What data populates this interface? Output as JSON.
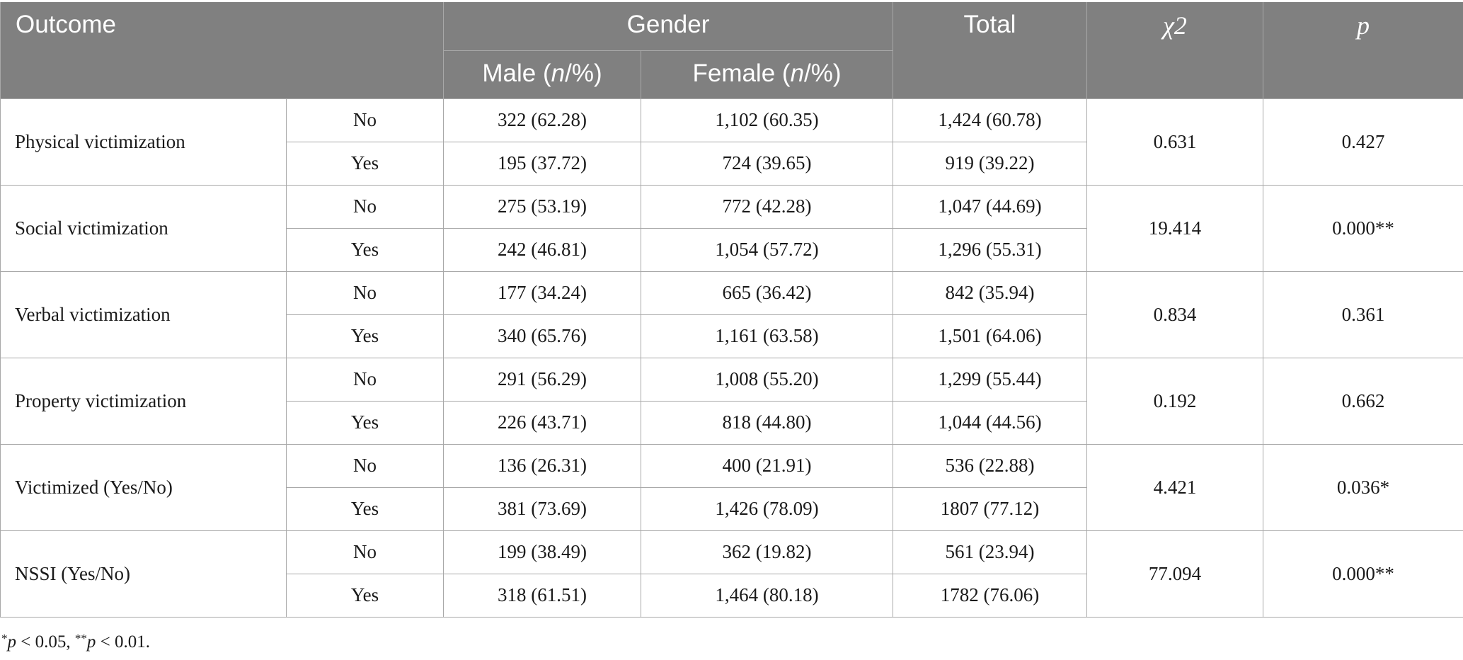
{
  "header": {
    "outcome": "Outcome",
    "gender": "Gender",
    "total": "Total",
    "chi": "χ2",
    "p": "p",
    "male_prefix": "Male (",
    "female_prefix": "Female (",
    "n": "n",
    "pct_suffix": "/%)"
  },
  "rows": [
    {
      "outcome": "Physical victimization",
      "chi": "0.631",
      "p": "0.427",
      "no": {
        "label": "No",
        "male": "322 (62.28)",
        "female": "1,102 (60.35)",
        "total": "1,424 (60.78)"
      },
      "yes": {
        "label": "Yes",
        "male": "195 (37.72)",
        "female": "724 (39.65)",
        "total": "919 (39.22)"
      }
    },
    {
      "outcome": "Social victimization",
      "chi": "19.414",
      "p": "0.000**",
      "no": {
        "label": "No",
        "male": "275 (53.19)",
        "female": "772 (42.28)",
        "total": "1,047 (44.69)"
      },
      "yes": {
        "label": "Yes",
        "male": "242 (46.81)",
        "female": "1,054 (57.72)",
        "total": "1,296 (55.31)"
      }
    },
    {
      "outcome": "Verbal victimization",
      "chi": "0.834",
      "p": "0.361",
      "no": {
        "label": "No",
        "male": "177 (34.24)",
        "female": "665 (36.42)",
        "total": "842 (35.94)"
      },
      "yes": {
        "label": "Yes",
        "male": "340 (65.76)",
        "female": "1,161 (63.58)",
        "total": "1,501 (64.06)"
      }
    },
    {
      "outcome": "Property victimization",
      "chi": "0.192",
      "p": "0.662",
      "no": {
        "label": "No",
        "male": "291 (56.29)",
        "female": "1,008 (55.20)",
        "total": "1,299 (55.44)"
      },
      "yes": {
        "label": "Yes",
        "male": "226 (43.71)",
        "female": "818 (44.80)",
        "total": "1,044 (44.56)"
      }
    },
    {
      "outcome": "Victimized (Yes/No)",
      "chi": "4.421",
      "p": "0.036*",
      "no": {
        "label": "No",
        "male": "136 (26.31)",
        "female": "400 (21.91)",
        "total": "536 (22.88)"
      },
      "yes": {
        "label": "Yes",
        "male": "381 (73.69)",
        "female": "1,426 (78.09)",
        "total": "1807 (77.12)"
      }
    },
    {
      "outcome": "NSSI (Yes/No)",
      "chi": "77.094",
      "p": "0.000**",
      "no": {
        "label": "No",
        "male": "199 (38.49)",
        "female": "362 (19.82)",
        "total": "561 (23.94)"
      },
      "yes": {
        "label": "Yes",
        "male": "318 (61.51)",
        "female": "1,464 (80.18)",
        "total": "1782 (76.06)"
      }
    }
  ],
  "footnote": {
    "star1": "*",
    "p1": "p",
    "t1": " < 0.05, ",
    "star2": "**",
    "p2": "p",
    "t2": " < 0.01."
  }
}
